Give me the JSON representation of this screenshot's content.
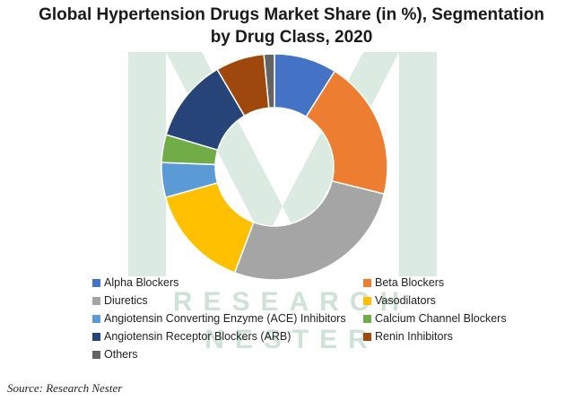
{
  "title_line1": "Global Hypertension Drugs Market Share (in %), Segmentation",
  "title_line2": "by Drug Class, 2020",
  "source": "Source: Research Nester",
  "watermark": {
    "line1": "RESEARCH",
    "line2": "NESTER",
    "color": "#9bbfa8"
  },
  "chart_data": {
    "type": "pie",
    "variant": "donut",
    "title": "Global Hypertension Drugs Market Share (in %), Segmentation by Drug Class, 2020",
    "unit": "%",
    "legend_position": "bottom",
    "categories": [
      "Alpha Blockers",
      "Beta Blockers",
      "Diuretics",
      "Vasodilators",
      "Angiotensin Converting Enzyme (ACE) Inhibitors",
      "Calcium Channel Blockers",
      "Angiotensin Receptor Blockers (ARB)",
      "Renin Inhibitors",
      "Others"
    ],
    "values": [
      9,
      20,
      27,
      15,
      5,
      4,
      12,
      7,
      1.5
    ],
    "colors": [
      "#4472c4",
      "#ed7d31",
      "#a5a5a5",
      "#ffc000",
      "#5b9bd5",
      "#70ad47",
      "#264478",
      "#9e480e",
      "#636363"
    ]
  }
}
